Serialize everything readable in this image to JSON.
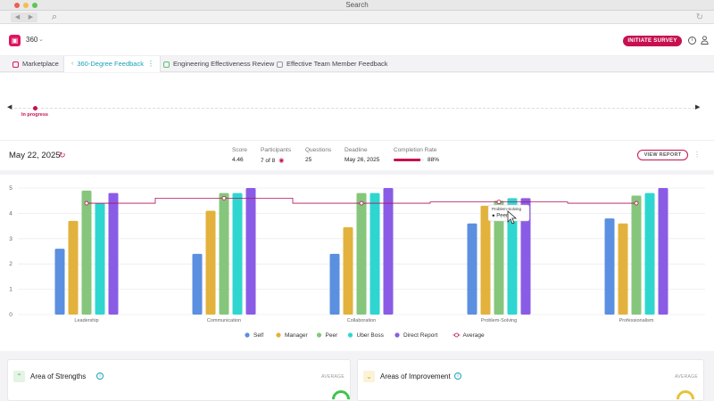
{
  "window": {
    "title": "Search"
  },
  "app": {
    "name": "360"
  },
  "header": {
    "initiate_label": "INITIATE SURVEY"
  },
  "tabs": [
    {
      "label": "Marketplace"
    },
    {
      "label": "360-Degree Feedback"
    },
    {
      "label": "Engineering Effectiveness Review"
    },
    {
      "label": "Effective Team Member Feedback"
    }
  ],
  "timeline": {
    "status": "In progress"
  },
  "summary": {
    "date": "May 22, 2025",
    "score_label": "Score",
    "score": "4.46",
    "participants_label": "Participants",
    "participants": "7 of 8",
    "questions_label": "Questions",
    "questions": "25",
    "deadline_label": "Deadline",
    "deadline": "May 26, 2025",
    "completion_label": "Completion Rate",
    "completion": "88%",
    "completion_fraction": 0.88,
    "view_report_label": "VIEW REPORT"
  },
  "tooltip": {
    "title": "Problem-Solving",
    "series": "Peer"
  },
  "chart_data": {
    "type": "bar",
    "categories": [
      "Leadership",
      "Communication",
      "Collaboration",
      "Problem-Solving",
      "Professionalism"
    ],
    "ylim": [
      0,
      5
    ],
    "yticks": [
      0,
      1,
      2,
      3,
      4,
      5
    ],
    "grid": true,
    "legend_placement": "bottom",
    "series": [
      {
        "name": "Self",
        "color": "#5b8fe0",
        "values": [
          2.6,
          2.4,
          2.4,
          3.6,
          3.8
        ]
      },
      {
        "name": "Manager",
        "color": "#e3b23c",
        "values": [
          3.7,
          4.1,
          3.45,
          4.3,
          3.6
        ]
      },
      {
        "name": "Peer",
        "color": "#86c67c",
        "values": [
          4.9,
          4.8,
          4.8,
          4.5,
          4.7
        ]
      },
      {
        "name": "Uber Boss",
        "color": "#2fd6d0",
        "values": [
          4.4,
          4.8,
          4.8,
          4.6,
          4.8
        ]
      },
      {
        "name": "Direct Report",
        "color": "#8a5ce6",
        "values": [
          4.8,
          5.0,
          5.0,
          4.6,
          5.0
        ]
      }
    ],
    "average": {
      "name": "Average",
      "color": "#b3105b",
      "values": [
        4.4,
        4.6,
        4.4,
        4.45,
        4.4
      ]
    }
  },
  "cards": [
    {
      "title": "Area of Strengths",
      "avg_label": "AVERAGE"
    },
    {
      "title": "Areas of Improvement",
      "avg_label": "AVERAGE"
    }
  ]
}
